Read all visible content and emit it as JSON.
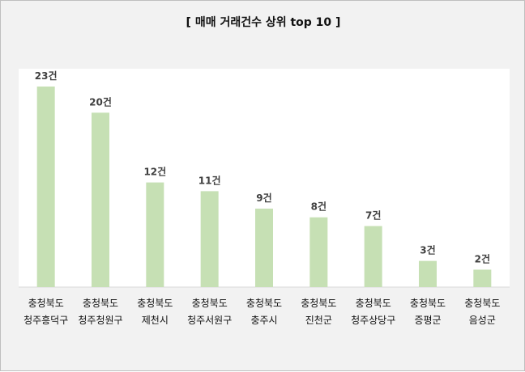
{
  "chart_data": {
    "type": "bar",
    "title": "[ 매매 거래건수 상위 top 10 ]",
    "xlabel": "",
    "ylabel": "",
    "ylim": [
      0,
      23
    ],
    "grid": false,
    "legend": "none",
    "bar_color": "#c6e0b4",
    "plot_background": "#ffffff",
    "categories": [
      [
        "충청북도",
        "청주흥덕구"
      ],
      [
        "충청북도",
        "청주청원구"
      ],
      [
        "충청북도",
        "제천시"
      ],
      [
        "충청북도",
        "청주서원구"
      ],
      [
        "충청북도",
        "충주시"
      ],
      [
        "충청북도",
        "진천군"
      ],
      [
        "충청북도",
        "청주상당구"
      ],
      [
        "충청북도",
        "증평군"
      ],
      [
        "충청북도",
        "음성군"
      ]
    ],
    "values": [
      23,
      20,
      12,
      11,
      9,
      8,
      7,
      3,
      2
    ],
    "data_labels": [
      "23건",
      "20건",
      "12건",
      "11건",
      "9건",
      "8건",
      "7건",
      "3건",
      "2건"
    ]
  }
}
